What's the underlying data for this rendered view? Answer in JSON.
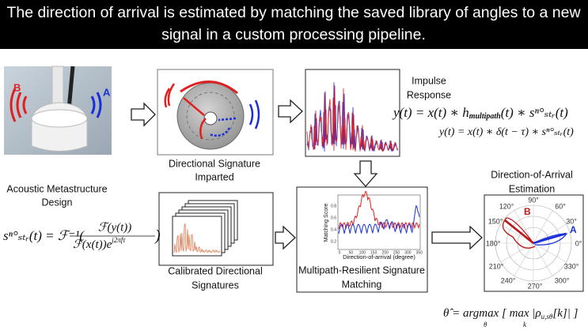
{
  "header": {
    "title_lines": [
      "The direction of arrival is estimated by matching the saved library of angles to a new",
      "signal in a custom processing pipeline."
    ]
  },
  "device": {
    "markers": [
      "B",
      "A"
    ],
    "label_lines": [
      "Acoustic Metastructure",
      "Design"
    ]
  },
  "signature": {
    "label_lines": [
      "Directional Signature",
      "Imparted"
    ]
  },
  "impulse": {
    "label_lines": [
      "Impulse",
      "Response"
    ]
  },
  "calibrated": {
    "label_lines": [
      "Calibrated Directional",
      "Signatures"
    ]
  },
  "matching": {
    "label_lines": [
      "Multipath-Resilient Signature",
      "Matching"
    ],
    "y_label": "Matching Score",
    "x_label": "Direction-of-arrival (degree)",
    "xticks": [
      "0",
      "50",
      "100",
      "150",
      "200",
      "250",
      "300",
      "350"
    ],
    "yticks": [
      "0.2",
      "0.4",
      "0.6",
      "0.8"
    ]
  },
  "estimation": {
    "label_lines": [
      "Direction-of-Arrival",
      "Estimation"
    ],
    "angle_labels": [
      "90°",
      "60°",
      "120°",
      "150°",
      "30°",
      "180°",
      "0°",
      "210°",
      "330°",
      "240°",
      "270°",
      "300°"
    ],
    "markers": [
      "B",
      "A"
    ]
  },
  "equations": {
    "convolution_multipath": "y(t) = x(t) ∗ h",
    "convolution_multipath_sub": "multipath",
    "convolution_multipath_rest": "(t) ∗ sⁿ°ₛₜᵣ(t)",
    "convolution_delay": "y(t) = x(t) ∗ δ(t − τ) ∗ sⁿ°ₛₜᵣ(t)",
    "signature_lhs": "sⁿ°ₛₜᵣ(t) = ℱ⁻¹(",
    "signature_num": "ℱ(y(t))",
    "signature_den": "ℱ(x(t))e",
    "signature_exp": "j2πfτ",
    "signature_close": ")",
    "argmax_main": "θ̂ = argmax [ max |ρ",
    "argmax_sub": "u,sθ",
    "argmax_tail": "[k]| ]",
    "argmax_under_1": "θ",
    "argmax_under_2": "k"
  }
}
